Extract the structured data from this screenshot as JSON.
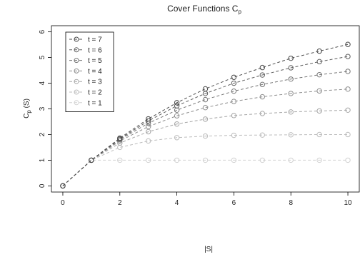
{
  "chart_data": {
    "type": "line",
    "title": "Cover Functions C",
    "title_subscript": "p",
    "xlabel": "|S|",
    "ylabel": "C",
    "ylabel_subscript": "p",
    "ylabel_suffix": " (S)",
    "xlim": [
      0,
      10
    ],
    "ylim": [
      0,
      6
    ],
    "x_ticks": [
      "0",
      "2",
      "4",
      "6",
      "8",
      "10"
    ],
    "y_ticks": [
      "0",
      "1",
      "2",
      "3",
      "4",
      "5",
      "6"
    ],
    "legend_position": "top-left",
    "grid": false,
    "x": [
      0,
      1,
      2,
      3,
      4,
      5,
      6,
      7,
      8,
      9,
      10
    ],
    "series": [
      {
        "name": "t = 7",
        "color": "#4a4a4a",
        "values": [
          0,
          1,
          1.86,
          2.61,
          3.24,
          3.78,
          4.23,
          4.61,
          4.97,
          5.25,
          5.51
        ]
      },
      {
        "name": "t = 6",
        "color": "#5e5e5e",
        "values": [
          0,
          1,
          1.83,
          2.53,
          3.12,
          3.6,
          4.0,
          4.32,
          4.6,
          4.84,
          5.04
        ]
      },
      {
        "name": "t = 5",
        "color": "#767676",
        "values": [
          0,
          1,
          1.8,
          2.44,
          2.95,
          3.36,
          3.69,
          3.95,
          4.16,
          4.33,
          4.46
        ]
      },
      {
        "name": "t = 4",
        "color": "#8e8e8e",
        "values": [
          0,
          1,
          1.75,
          2.31,
          2.73,
          3.05,
          3.29,
          3.47,
          3.6,
          3.7,
          3.77
        ]
      },
      {
        "name": "t = 3",
        "color": "#a6a6a6",
        "values": [
          0,
          1,
          1.67,
          2.11,
          2.41,
          2.6,
          2.74,
          2.82,
          2.88,
          2.92,
          2.95
        ]
      },
      {
        "name": "t = 2",
        "color": "#bdbdbd",
        "values": [
          0,
          1,
          1.5,
          1.75,
          1.88,
          1.94,
          1.97,
          1.98,
          1.99,
          2.0,
          2.0
        ]
      },
      {
        "name": "t = 1",
        "color": "#d2d2d2",
        "values": [
          0,
          1,
          1,
          1,
          1,
          1,
          1,
          1,
          1,
          1,
          1
        ]
      }
    ]
  }
}
